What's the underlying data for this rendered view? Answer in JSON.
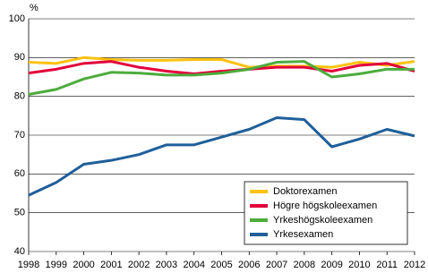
{
  "chart_data": {
    "type": "line",
    "y_label": "%",
    "categories": [
      "1998",
      "1999",
      "2000",
      "2001",
      "2002",
      "2003",
      "2004",
      "2005",
      "2006",
      "2007",
      "2008",
      "2009",
      "2010",
      "2011",
      "2012"
    ],
    "series": [
      {
        "name": "Doktorexamen",
        "color": "#ffc20e",
        "values": [
          88.8,
          88.5,
          90,
          89.5,
          89.3,
          89.3,
          89.5,
          89.5,
          87.5,
          87.8,
          87.8,
          87.5,
          88.8,
          88,
          89
        ]
      },
      {
        "name": "Högre högskoleexamen",
        "color": "#e2003b",
        "values": [
          86,
          87,
          88.5,
          89,
          87.5,
          86.5,
          85.8,
          86.5,
          87,
          87.5,
          87.5,
          86.5,
          88,
          88.5,
          86.5
        ]
      },
      {
        "name": "Yrkeshögskoleexamen",
        "color": "#4cac3c",
        "values": [
          80.5,
          81.8,
          84.5,
          86.2,
          86,
          85.5,
          85.5,
          86,
          87,
          88.8,
          89,
          85,
          85.8,
          87,
          87
        ]
      },
      {
        "name": "Yrkesexamen",
        "color": "#1f5f9a",
        "values": [
          54.5,
          57.8,
          62.5,
          63.5,
          65,
          67.5,
          67.5,
          69.5,
          71.5,
          74.5,
          74,
          67,
          69,
          71.5,
          69.8
        ]
      }
    ],
    "ylim": [
      40,
      100
    ],
    "yticks": [
      40,
      50,
      60,
      70,
      80,
      90,
      100
    ],
    "grid": true,
    "legend": "lower right"
  }
}
